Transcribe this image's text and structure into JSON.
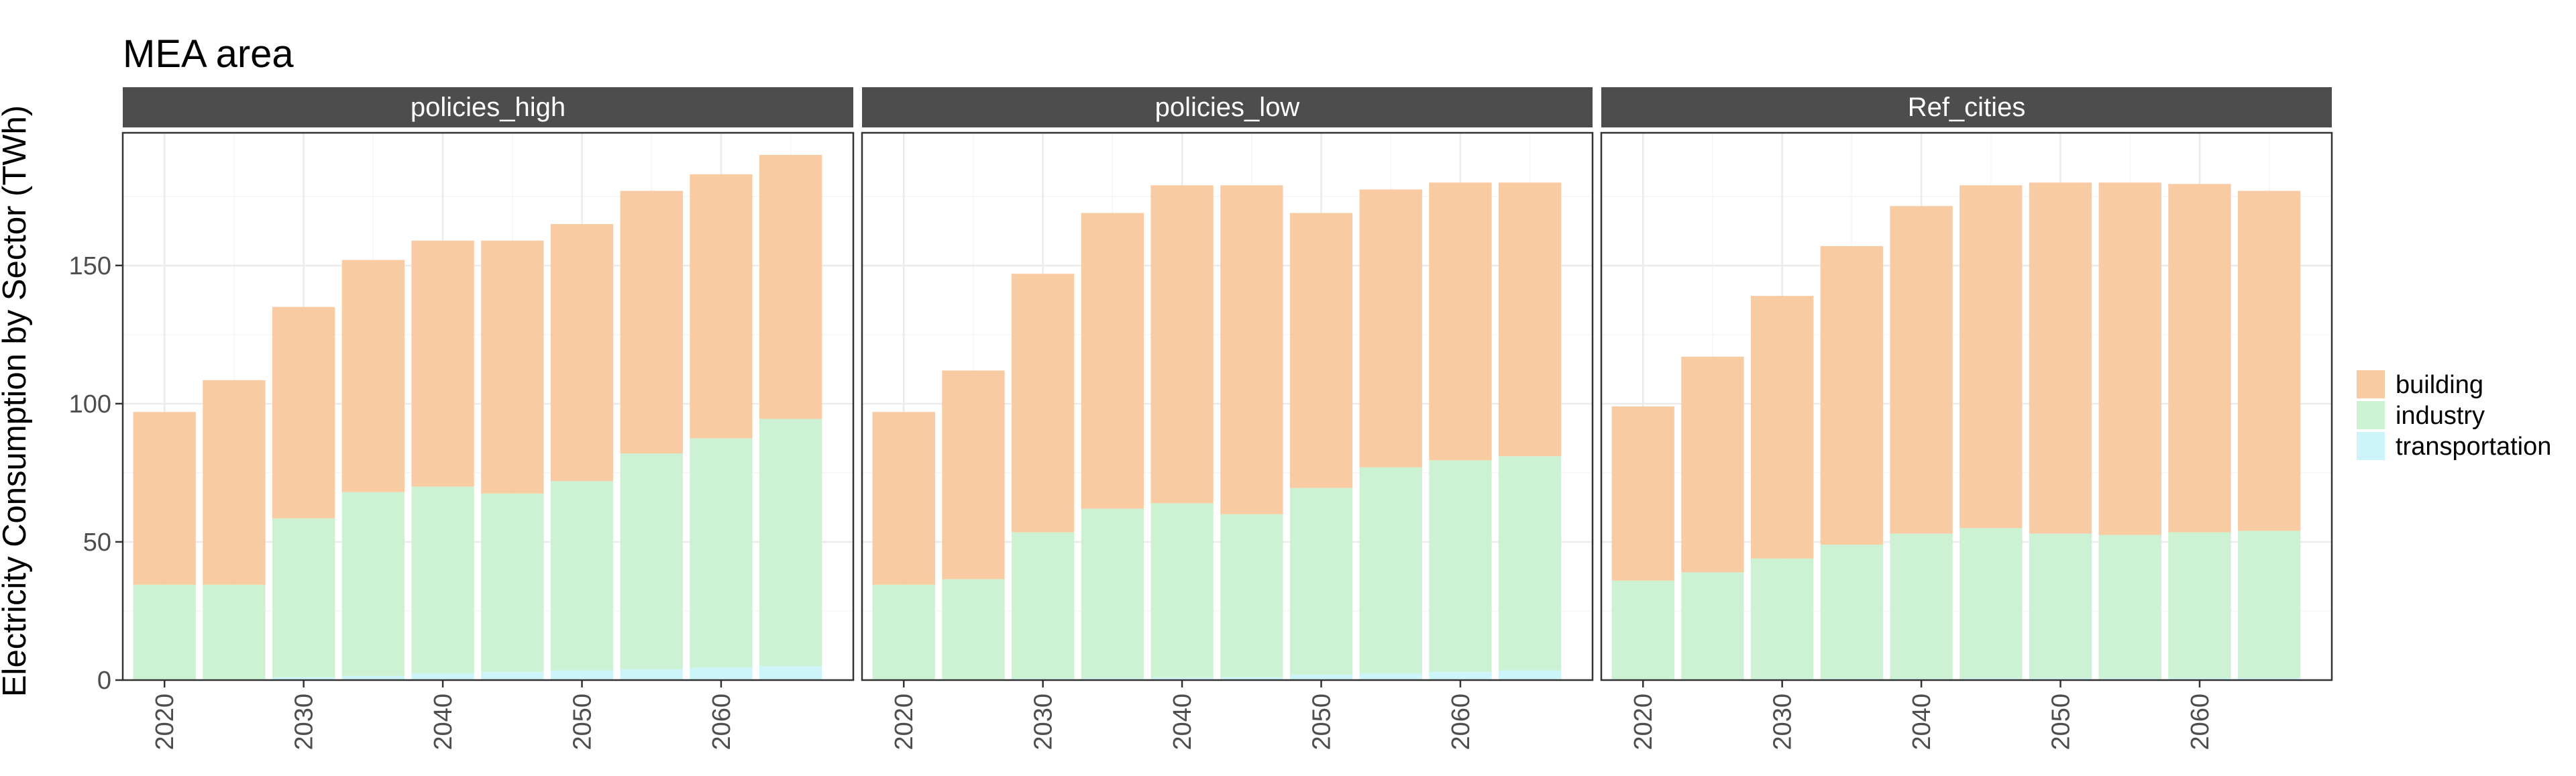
{
  "title": "MEA area",
  "ylabel": "Electricity Consumption by Sector (TWh)",
  "colors": {
    "building": "#F8CBA3",
    "industry": "#CDF2D3",
    "transportation": "#CDF5F9",
    "strip": "#4D4D4D",
    "strip_text": "#FFFFFF",
    "grid_major": "#EBEBEB",
    "grid_minor": "#F5F5F5",
    "panel_border": "#333333",
    "tick_text": "#4D4D4D"
  },
  "legend": {
    "items": [
      {
        "key": "building",
        "label": "building"
      },
      {
        "key": "industry",
        "label": "industry"
      },
      {
        "key": "transportation",
        "label": "transportation"
      }
    ],
    "position": "right"
  },
  "chart_data": {
    "type": "bar",
    "stacked": true,
    "title": "MEA area",
    "xlabel": "",
    "ylabel": "Electricity Consumption by Sector (TWh)",
    "ylim": [
      0,
      198
    ],
    "yticks": [
      0,
      50,
      100,
      150
    ],
    "xticks": [
      2020,
      2030,
      2040,
      2050,
      2060
    ],
    "x": [
      2020,
      2025,
      2030,
      2035,
      2040,
      2045,
      2050,
      2055,
      2060,
      2065
    ],
    "xlim": [
      2017,
      2069.5
    ],
    "grid": true,
    "legend_position": "right",
    "stack_order": [
      "transportation",
      "industry",
      "building"
    ],
    "panels": [
      {
        "name": "policies_high",
        "series": [
          {
            "name": "transportation",
            "values": [
              0.2,
              0.3,
              1.0,
              1.5,
              2.5,
              3.0,
              3.5,
              4.0,
              4.5,
              5.0
            ]
          },
          {
            "name": "industry",
            "values": [
              34.3,
              34.2,
              57.5,
              66.5,
              67.5,
              64.5,
              68.5,
              78.0,
              83.0,
              89.5
            ]
          },
          {
            "name": "building",
            "values": [
              62.5,
              74.0,
              76.5,
              84.0,
              89.0,
              91.5,
              93.0,
              95.0,
              95.5,
              95.5
            ]
          }
        ]
      },
      {
        "name": "policies_low",
        "series": [
          {
            "name": "transportation",
            "values": [
              0.2,
              0.3,
              0.5,
              0.6,
              0.8,
              1.0,
              2.0,
              2.5,
              3.0,
              3.5
            ]
          },
          {
            "name": "industry",
            "values": [
              34.3,
              36.2,
              53.0,
              61.4,
              63.2,
              59.0,
              67.5,
              74.5,
              76.5,
              77.5
            ]
          },
          {
            "name": "building",
            "values": [
              62.5,
              75.5,
              93.5,
              107.0,
              115.0,
              119.0,
              99.5,
              100.5,
              100.5,
              99.0
            ]
          }
        ]
      },
      {
        "name": "Ref_cities",
        "series": [
          {
            "name": "transportation",
            "values": [
              0.2,
              0.3,
              0.4,
              0.5,
              0.5,
              0.6,
              0.6,
              0.6,
              0.7,
              0.7
            ]
          },
          {
            "name": "industry",
            "values": [
              35.8,
              38.7,
              43.6,
              48.5,
              52.5,
              54.4,
              52.4,
              51.9,
              52.8,
              53.3
            ]
          },
          {
            "name": "building",
            "values": [
              63.0,
              78.0,
              95.0,
              108.0,
              118.5,
              124.0,
              127.0,
              127.5,
              126.0,
              123.0
            ]
          }
        ]
      }
    ]
  }
}
